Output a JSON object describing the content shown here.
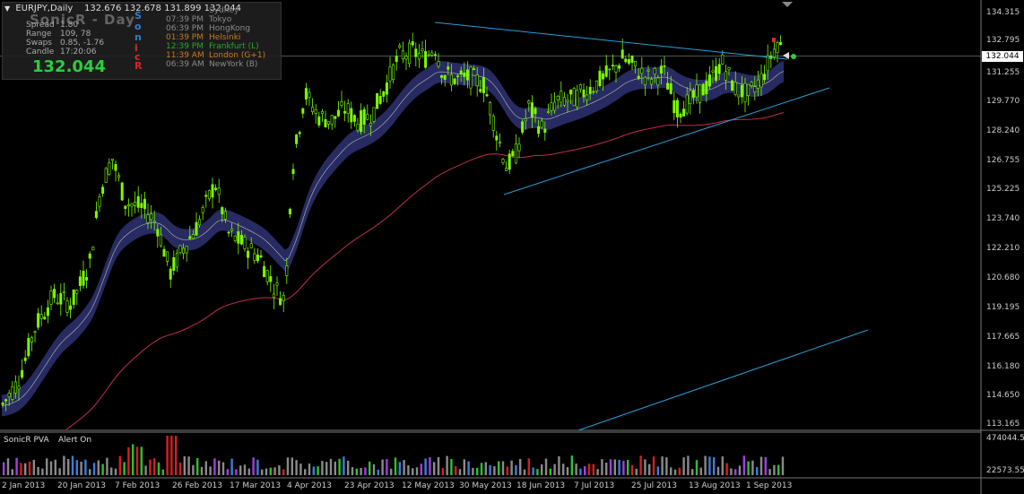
{
  "header": {
    "symbol": "EURJPY,Daily",
    "ohlc": "132.676 132.678 131.899 132.044",
    "ghost_title": "SonicR - Day"
  },
  "stats": [
    {
      "label": "Spread",
      "value": "1.80"
    },
    {
      "label": "Range",
      "value": "109, 78"
    },
    {
      "label": "Swaps",
      "value": "0.85, -1.76"
    },
    {
      "label": "Candle",
      "value": "17:20:06"
    }
  ],
  "big_price": "132.044",
  "sonic_letters": [
    {
      "char": "S",
      "color": "#2f7fd0"
    },
    {
      "char": "o",
      "color": "#2f7fd0"
    },
    {
      "char": "n",
      "color": "#2f7fd0"
    },
    {
      "char": "i",
      "color": "#d03030"
    },
    {
      "char": "c",
      "color": "#d03030"
    },
    {
      "char": "R",
      "color": "#e02020"
    }
  ],
  "sessions": [
    {
      "time": "",
      "name": "Sydney",
      "color": "#7f7f7f"
    },
    {
      "time": "07:39 PM",
      "name": "Tokyo",
      "color": "#8a8a8a"
    },
    {
      "time": "06:39 PM",
      "name": "HongKong",
      "color": "#8a8a8a"
    },
    {
      "time": "01:39 PM",
      "name": "Helsinki",
      "color": "#c87a1e"
    },
    {
      "time": "12:39 PM",
      "name": "Frankfurt  (L)",
      "color": "#28a828"
    },
    {
      "time": "11:39 AM",
      "name": "London  (G+1)",
      "color": "#c87a1e"
    },
    {
      "time": "06:39 AM",
      "name": "NewYork  (B)",
      "color": "#8a8a8a"
    }
  ],
  "price_axis": [
    "134.315",
    "132.795",
    "131.255",
    "129.770",
    "128.240",
    "126.755",
    "125.225",
    "123.740",
    "122.210",
    "120.680",
    "119.195",
    "117.665",
    "116.180",
    "114.650",
    "113.165"
  ],
  "current_price_label": "132.044",
  "date_axis": [
    "2 Jan 2013",
    "20 Jan 2013",
    "7 Feb 2013",
    "26 Feb 2013",
    "17 Mar 2013",
    "4 Apr 2013",
    "23 Apr 2013",
    "12 May 2013",
    "30 May 2013",
    "18 Jun 2013",
    "7 Jul 2013",
    "25 Jul 2013",
    "13 Aug 2013",
    "1 Sep 2013"
  ],
  "subwindow": {
    "title": "SonicR PVA",
    "alert": "Alert On",
    "max_label": "474044.5",
    "min_label": "22573.55"
  },
  "colors": {
    "bull_candle": "#7cfc00",
    "band_fill": "#2a2d66",
    "ma_line": "#c0304f",
    "trendline": "#2a9fd8",
    "vol_red": "#d42020",
    "vol_green": "#30c030",
    "vol_blue": "#3a7fd8",
    "vol_purple": "#a040e0",
    "vol_grey": "#8a8a8a"
  }
}
